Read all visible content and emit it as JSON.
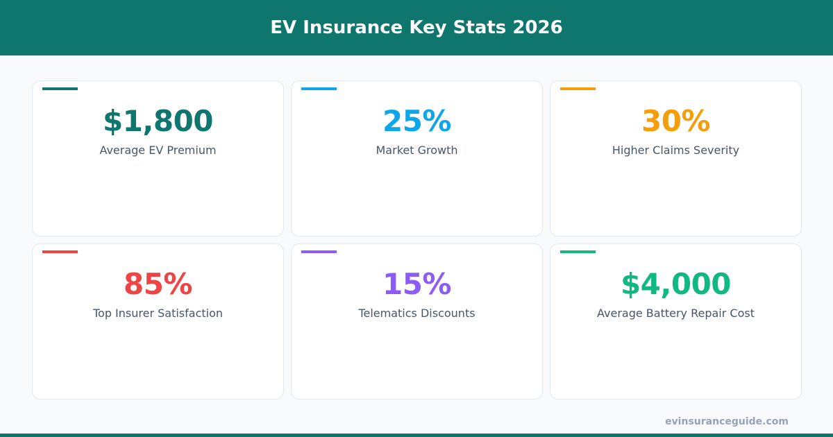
{
  "header": {
    "title": "EV Insurance Key Stats 2026"
  },
  "stats": [
    {
      "value": "$1,800",
      "label": "Average EV Premium",
      "color": "#0f766e"
    },
    {
      "value": "25%",
      "label": "Market Growth",
      "color": "#0ea5e9"
    },
    {
      "value": "30%",
      "label": "Higher Claims Severity",
      "color": "#f59e0b"
    },
    {
      "value": "85%",
      "label": "Top Insurer Satisfaction",
      "color": "#ef4444"
    },
    {
      "value": "15%",
      "label": "Telematics Discounts",
      "color": "#8b5cf6"
    },
    {
      "value": "$4,000",
      "label": "Average Battery Repair Cost",
      "color": "#10b981"
    }
  ],
  "footer": {
    "site": "evinsuranceguide.com"
  }
}
